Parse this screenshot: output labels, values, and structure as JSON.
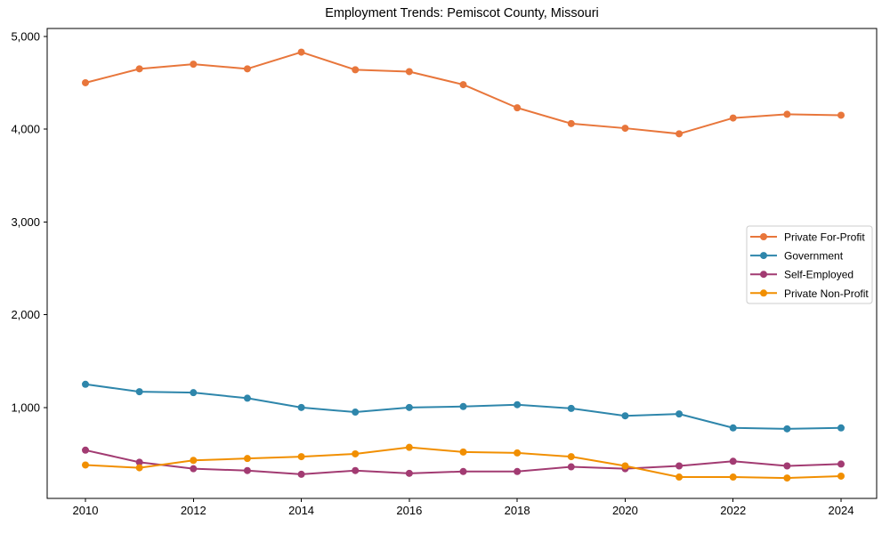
{
  "chart_data": {
    "type": "line",
    "title": "Employment Trends: Pemiscot County, Missouri",
    "xlabel": "",
    "ylabel": "",
    "grid": false,
    "legend_position": "center right",
    "background_color": "#ffffff",
    "axis_color": "#000000",
    "legend_border_color": "#cccccc",
    "x": [
      2010,
      2011,
      2012,
      2013,
      2014,
      2015,
      2016,
      2017,
      2018,
      2019,
      2020,
      2021,
      2022,
      2023,
      2024
    ],
    "series": [
      {
        "name": "Private For-Profit",
        "color": "#E8763B",
        "values": [
          4500,
          4650,
          4700,
          4650,
          4830,
          4640,
          4620,
          4480,
          4230,
          4060,
          4010,
          3950,
          4120,
          4160,
          4150
        ]
      },
      {
        "name": "Government",
        "color": "#2E86AB",
        "values": [
          1250,
          1170,
          1160,
          1100,
          1000,
          950,
          1000,
          1010,
          1030,
          990,
          910,
          930,
          780,
          770,
          780
        ]
      },
      {
        "name": "Self-Employed",
        "color": "#A23B72",
        "values": [
          540,
          410,
          340,
          320,
          280,
          320,
          290,
          310,
          310,
          360,
          340,
          370,
          420,
          370,
          390
        ]
      },
      {
        "name": "Private Non-Profit",
        "color": "#F18F01",
        "values": [
          380,
          350,
          430,
          450,
          470,
          500,
          570,
          520,
          510,
          470,
          370,
          250,
          250,
          240,
          260
        ]
      }
    ],
    "xticks": [
      2010,
      2012,
      2014,
      2016,
      2018,
      2020,
      2022,
      2024
    ],
    "xtick_labels": [
      "2010",
      "2012",
      "2014",
      "2016",
      "2018",
      "2020",
      "2022",
      "2024"
    ],
    "yticks": [
      1000,
      2000,
      3000,
      4000,
      5000
    ],
    "ytick_labels": [
      "1,000",
      "2,000",
      "3,000",
      "4,000",
      "5,000"
    ],
    "xlim": [
      2009.3,
      2024.7
    ],
    "ylim": [
      20,
      5085
    ]
  }
}
